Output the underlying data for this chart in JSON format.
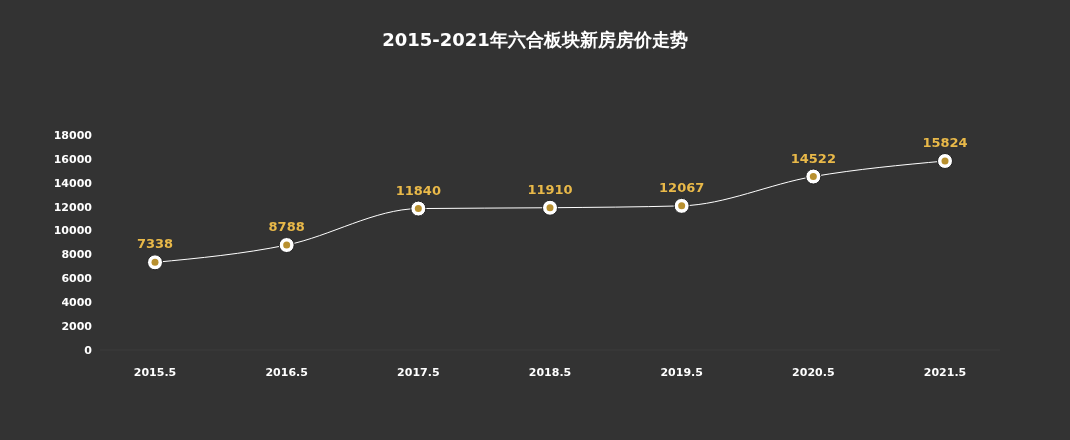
{
  "chart_data": {
    "type": "line",
    "title": "2015-2021年六合板块新房房价走势",
    "categories": [
      "2015.5",
      "2016.5",
      "2017.5",
      "2018.5",
      "2019.5",
      "2020.5",
      "2021.5"
    ],
    "series": [
      {
        "color": "#ffffff",
        "values": [
          7338,
          8788,
          11840,
          11910,
          12067,
          14522,
          15824
        ]
      }
    ],
    "ylim": [
      0,
      18000
    ],
    "yticks": [
      0,
      2000,
      4000,
      6000,
      8000,
      10000,
      12000,
      14000,
      16000,
      18000
    ],
    "marker": "circle",
    "data_labels": true
  }
}
